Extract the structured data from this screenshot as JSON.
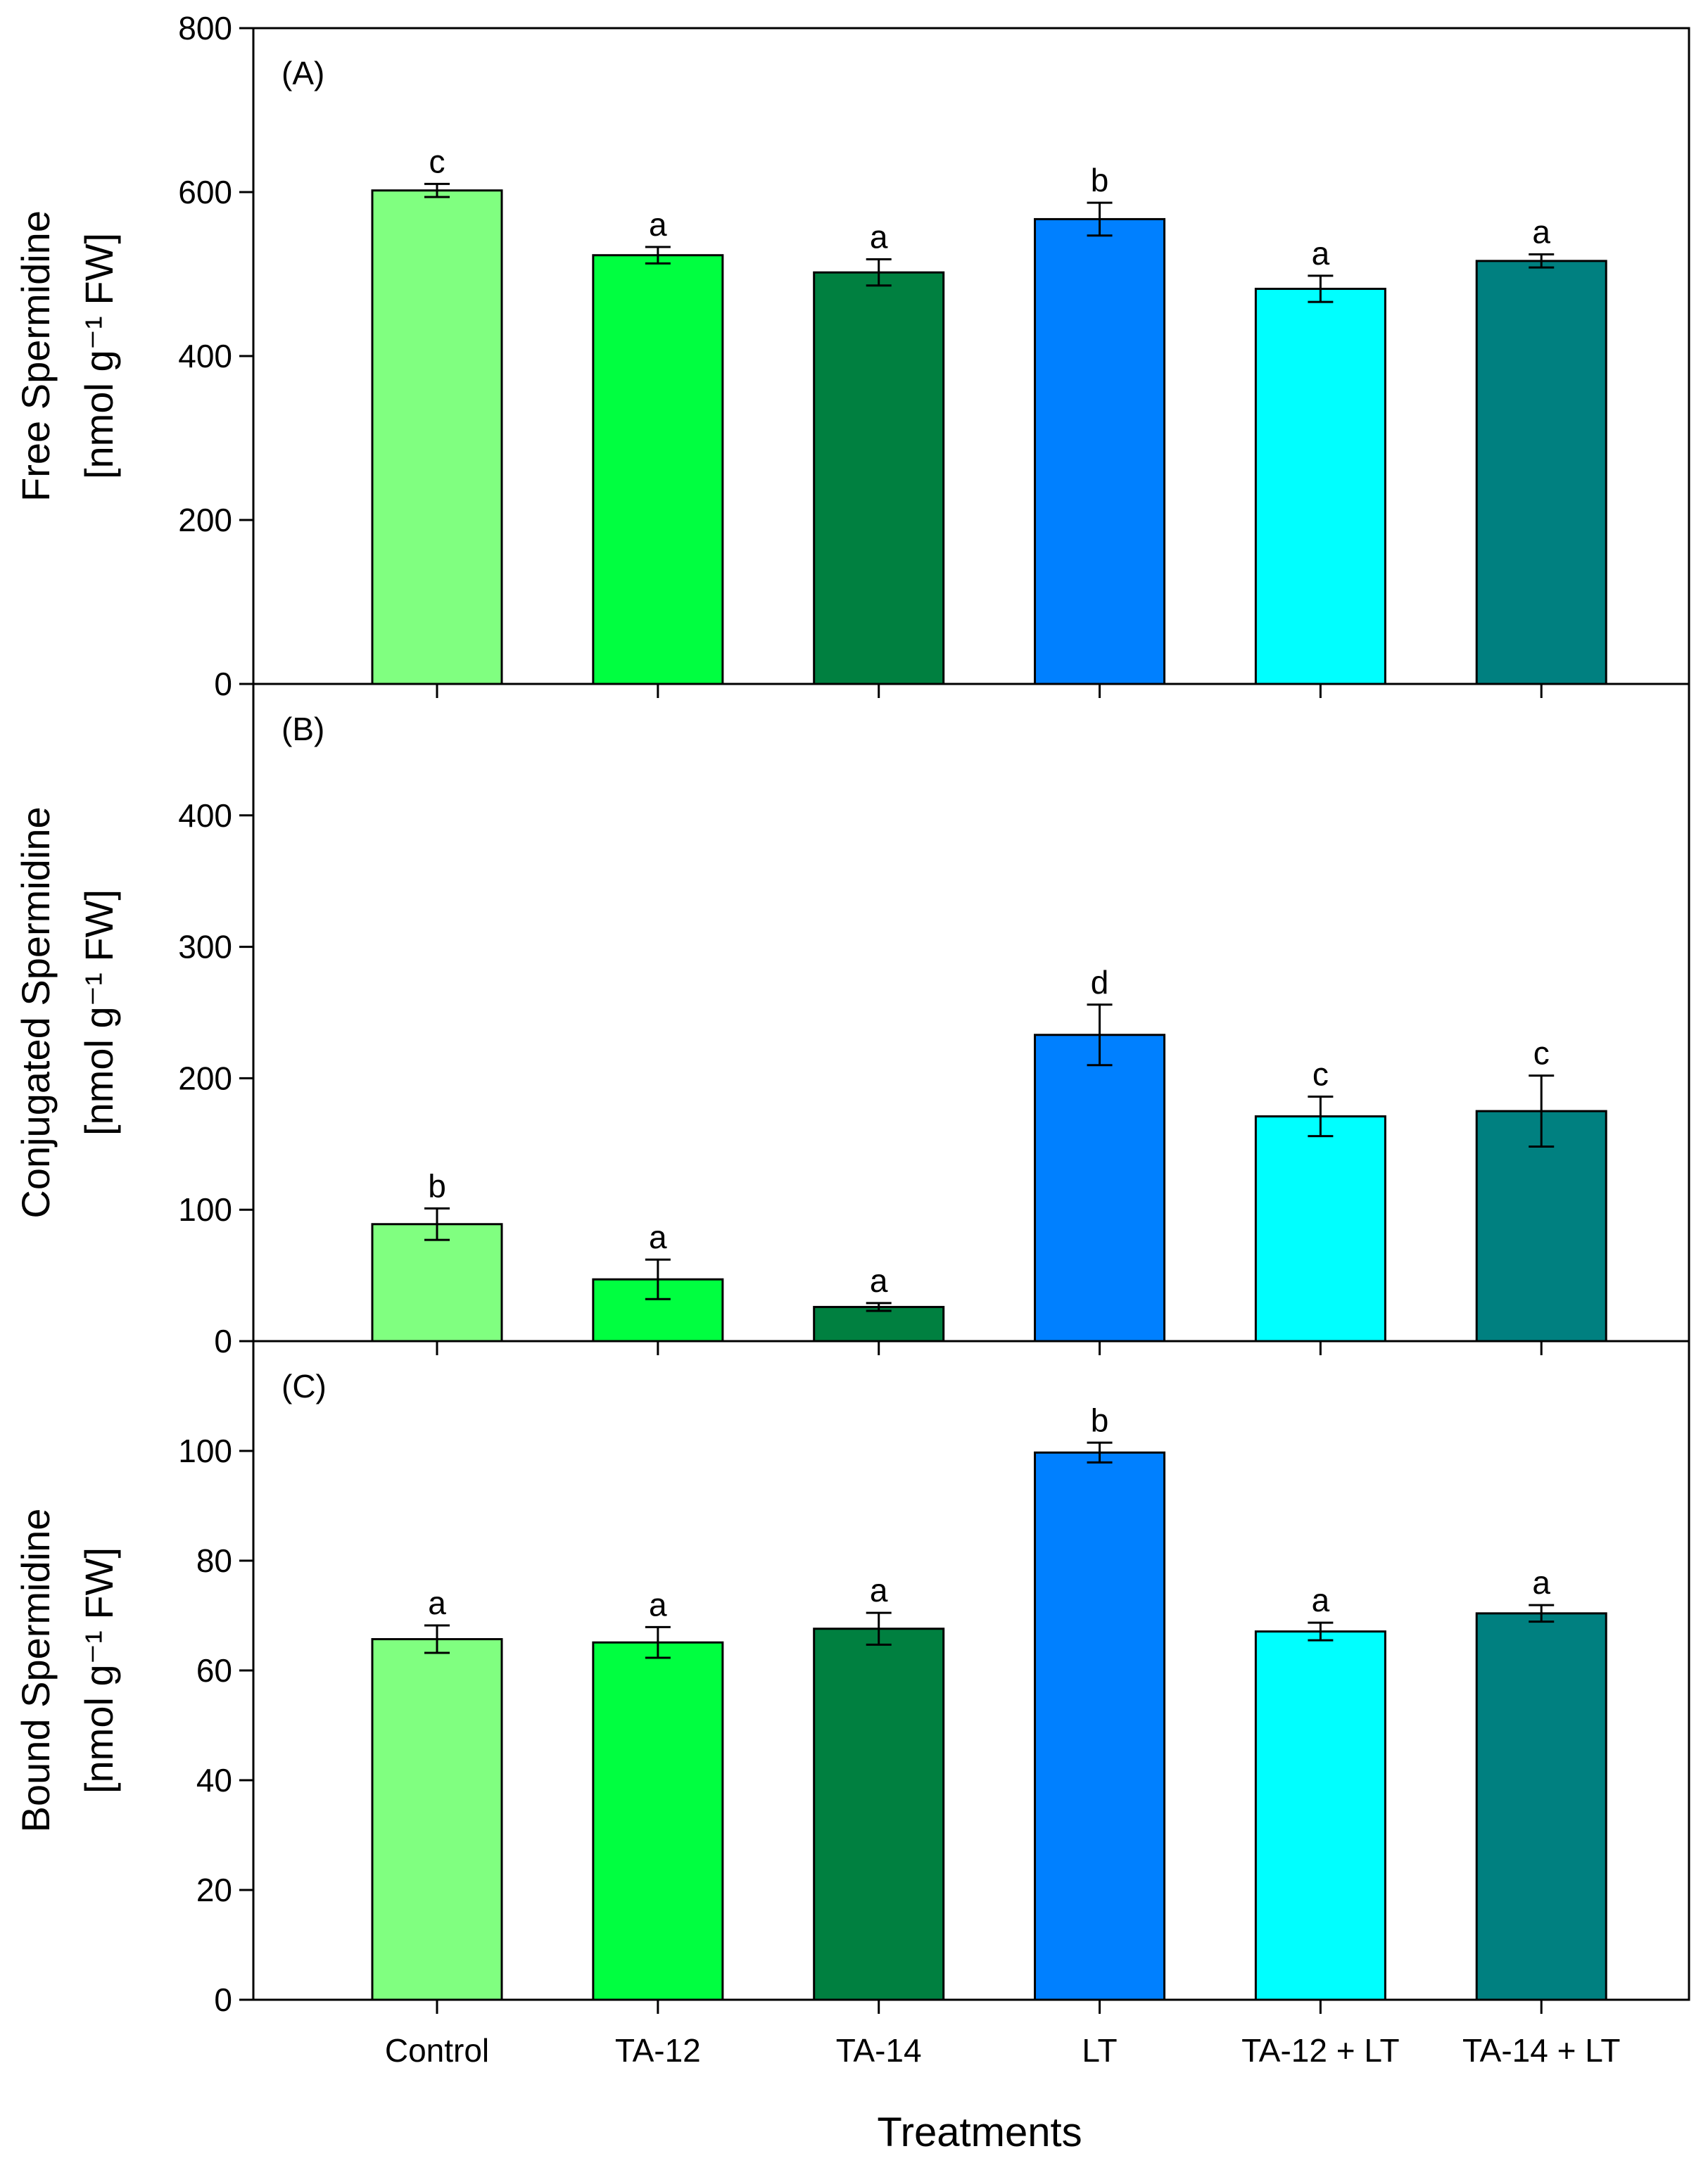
{
  "chart_data": [
    {
      "type": "bar",
      "panel": "(A)",
      "ylabel_line1": "Free Spermidine",
      "ylabel_line2": "[nmol g⁻¹ FW]",
      "ylim": [
        0,
        800
      ],
      "yticks": [
        0,
        200,
        400,
        600,
        800
      ],
      "categories": [
        "Control",
        "TA-12",
        "TA-14",
        "LT",
        "TA-12 + LT",
        "TA-14 + LT"
      ],
      "values": [
        602,
        523,
        502,
        567,
        482,
        516
      ],
      "errors": [
        8,
        10,
        16,
        20,
        16,
        8
      ],
      "letters": [
        "c",
        "a",
        "a",
        "b",
        "a",
        "a"
      ]
    },
    {
      "type": "bar",
      "panel": "(B)",
      "ylabel_line1": "Conjugated Spermidine",
      "ylabel_line2": "[nmol g⁻¹ FW]",
      "ylim": [
        0,
        500
      ],
      "yticks": [
        0,
        100,
        200,
        300,
        400
      ],
      "categories": [
        "Control",
        "TA-12",
        "TA-14",
        "LT",
        "TA-12 + LT",
        "TA-14 + LT"
      ],
      "values": [
        89,
        47,
        26,
        233,
        171,
        175
      ],
      "errors": [
        12,
        15,
        3,
        23,
        15,
        27
      ],
      "letters": [
        "b",
        "a",
        "a",
        "d",
        "c",
        "c"
      ]
    },
    {
      "type": "bar",
      "panel": "(C)",
      "ylabel_line1": "Bound Spermidine",
      "ylabel_line2": "[nmol g⁻¹ FW]",
      "ylim": [
        0,
        120
      ],
      "yticks": [
        0,
        20,
        40,
        60,
        80,
        100
      ],
      "categories": [
        "Control",
        "TA-12",
        "TA-14",
        "LT",
        "TA-12 + LT",
        "TA-14 + LT"
      ],
      "values": [
        65.7,
        65.1,
        67.6,
        99.7,
        67.1,
        70.4
      ],
      "errors": [
        2.5,
        2.8,
        2.9,
        1.8,
        1.6,
        1.5
      ],
      "letters": [
        "a",
        "a",
        "a",
        "b",
        "a",
        "a"
      ]
    }
  ],
  "xlabel": "Treatments",
  "colors": [
    "#80ff80",
    "#00ff40",
    "#008040",
    "#0080ff",
    "#00ffff",
    "#008080"
  ]
}
